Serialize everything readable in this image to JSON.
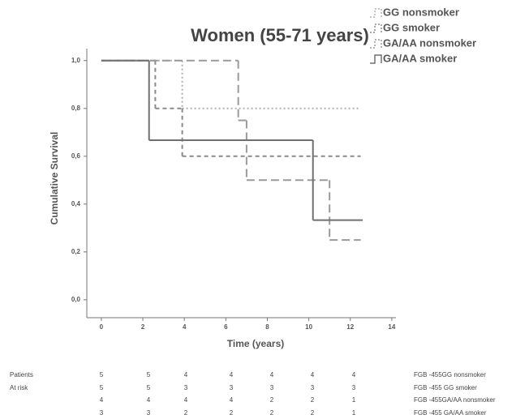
{
  "chart_data": {
    "type": "step",
    "title": "Women (55-71 years)",
    "x_label": "Time (years)",
    "y_label": "Cumulative Survival",
    "xlim": [
      -0.7,
      14.2
    ],
    "xticks": [
      0,
      2,
      4,
      6,
      8,
      10,
      12,
      14
    ],
    "ylim": [
      -0.075,
      1.05
    ],
    "yticks": [
      {
        "value": 0,
        "label": "0,0"
      },
      {
        "value": 0.2,
        "label": "0,2"
      },
      {
        "value": 0.4,
        "label": "0,4"
      },
      {
        "value": 0.6,
        "label": "0,6"
      },
      {
        "value": 0.8,
        "label": "0,8"
      },
      {
        "value": 1,
        "label": "1,0"
      }
    ],
    "series": [
      {
        "name": "GG nonsmoker",
        "color": "#b0b0b0",
        "dash": "dotted",
        "x": [
          0,
          3.9
        ],
        "values": [
          1,
          0.8
        ],
        "x_end": 12.5
      },
      {
        "name": "GG smoker",
        "color": "#8a8a8a",
        "dash": "dashed",
        "x": [
          0,
          2.6,
          3.9
        ],
        "values": [
          1,
          0.8,
          0.6
        ],
        "x_end": 12.5
      },
      {
        "name": "GA/AA nonsmoker",
        "color": "#9a9a9a",
        "dash": "long-dashed",
        "x": [
          0,
          6.6,
          7.0,
          11.0
        ],
        "values": [
          1,
          0.75,
          0.5,
          0.25
        ],
        "x_end": 12.5
      },
      {
        "name": "GA/AA smoker",
        "color": "#707070",
        "dash": "solid",
        "x": [
          0,
          2.3,
          10.2
        ],
        "values": [
          1,
          0.667,
          0.333
        ],
        "x_end": 12.6
      }
    ],
    "risk_table": {
      "labels": [
        "Patients",
        "At risk"
      ],
      "rows": [
        {
          "counts": [
            5,
            5,
            4,
            4,
            4,
            4,
            4
          ],
          "label": "FGB -455GG nonsmoker"
        },
        {
          "counts": [
            5,
            5,
            3,
            3,
            3,
            3,
            3
          ],
          "label": "FGB -455 GG smoker"
        },
        {
          "counts": [
            4,
            4,
            4,
            4,
            2,
            2,
            1
          ],
          "label": "FGB -455GA/AA nonsmoker"
        },
        {
          "counts": [
            3,
            3,
            2,
            2,
            2,
            2,
            1
          ],
          "label": "FGB -455 GA/AA smoker"
        }
      ]
    }
  }
}
